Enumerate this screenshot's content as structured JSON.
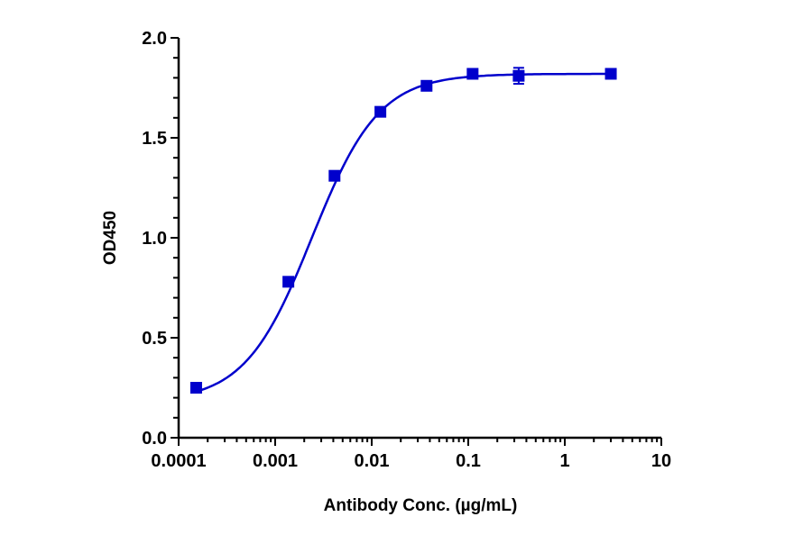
{
  "chart_data": {
    "type": "scatter",
    "title": "",
    "xlabel": "Antibody Conc. (µg/mL)",
    "ylabel": "OD450",
    "xscale": "log",
    "xlim": [
      0.0001,
      10
    ],
    "ylim": [
      0,
      2.0
    ],
    "x_ticks": [
      "0.0001",
      "0.001",
      "0.01",
      "0.1",
      "1",
      "10"
    ],
    "y_ticks": [
      "0.0",
      "0.5",
      "1.0",
      "1.5",
      "2.0"
    ],
    "grid": false,
    "legend": null,
    "series": [
      {
        "name": "OD450",
        "color": "#0000cc",
        "marker": "square",
        "fit": "4-parameter logistic curve",
        "x": [
          0.000152,
          0.00137,
          0.00412,
          0.0123,
          0.037,
          0.111,
          0.333,
          3.0
        ],
        "y": [
          0.25,
          0.78,
          1.31,
          1.63,
          1.76,
          1.82,
          1.81,
          1.82
        ],
        "error": [
          0.01,
          0.01,
          0.01,
          0.01,
          0.01,
          0.01,
          0.04,
          0.01
        ]
      }
    ]
  },
  "colors": {
    "series": "#0000cc",
    "axis": "#000000"
  }
}
